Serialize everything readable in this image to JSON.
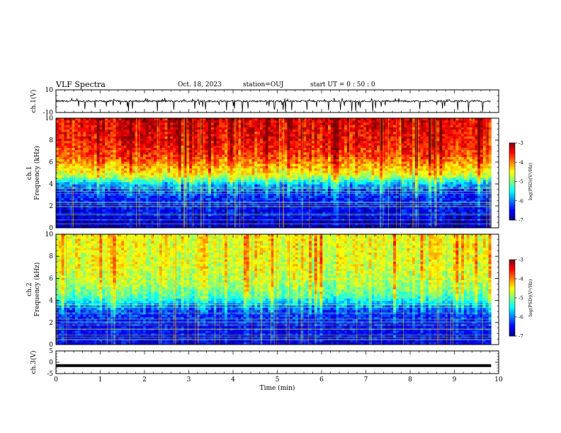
{
  "header": {
    "title": "VLF Spectra",
    "date": "Oct. 18, 2023",
    "station": "station=OUJ",
    "start": "start  UT  =   0  : 50 : 0"
  },
  "chart_data": [
    {
      "type": "line",
      "id": "ch1-waveform",
      "ylabel": "ch.1(V)",
      "ylim": [
        -10,
        10
      ],
      "yticks": [
        10,
        -10
      ],
      "xlim": [
        0,
        10
      ],
      "series": [
        {
          "values_description_free": true,
          "baseline": 0,
          "spike_min": -10,
          "spike_max": 3
        }
      ],
      "color": "#000000"
    },
    {
      "type": "heatmap",
      "id": "ch1-spectrogram",
      "ylabel": [
        "ch.1",
        "Frequency (kHz)"
      ],
      "ylim": [
        0,
        10
      ],
      "yticks": [
        0,
        2,
        4,
        6,
        8,
        10
      ],
      "xlim": [
        0,
        10
      ],
      "data_end_min": 9.83,
      "band_profile_log_psd": [
        {
          "f": 0.0,
          "v": -6.8
        },
        {
          "f": 1.0,
          "v": -6.6
        },
        {
          "f": 2.0,
          "v": -6.5
        },
        {
          "f": 3.0,
          "v": -6.3
        },
        {
          "f": 3.8,
          "v": -6.0
        },
        {
          "f": 4.3,
          "v": -5.3
        },
        {
          "f": 4.8,
          "v": -4.6
        },
        {
          "f": 5.5,
          "v": -4.3
        },
        {
          "f": 6.5,
          "v": -3.8
        },
        {
          "f": 8.0,
          "v": -3.5
        },
        {
          "f": 10.0,
          "v": -3.4
        }
      ],
      "colorbar": {
        "label": "log(PSD)(V²/Hz)",
        "min": -7,
        "max": -3,
        "ticks": [
          -3,
          -4,
          -5,
          -6,
          -7
        ]
      }
    },
    {
      "type": "heatmap",
      "id": "ch2-spectrogram",
      "ylabel": [
        "ch.2",
        "Frequency (kHz)"
      ],
      "ylim": [
        0,
        10
      ],
      "yticks": [
        0,
        2,
        4,
        6,
        8,
        10
      ],
      "xlim": [
        0,
        10
      ],
      "data_end_min": 9.83,
      "band_profile_log_psd": [
        {
          "f": 0.0,
          "v": -6.6
        },
        {
          "f": 1.0,
          "v": -6.5
        },
        {
          "f": 2.0,
          "v": -6.4
        },
        {
          "f": 3.0,
          "v": -6.2
        },
        {
          "f": 3.6,
          "v": -5.8
        },
        {
          "f": 4.3,
          "v": -5.2
        },
        {
          "f": 5.5,
          "v": -4.8
        },
        {
          "f": 7.0,
          "v": -4.6
        },
        {
          "f": 10.0,
          "v": -4.5
        }
      ],
      "colorbar": {
        "label": "log(PSD)(V²/Hz)",
        "min": -7,
        "max": -3,
        "ticks": [
          -3,
          -4,
          -5,
          -6,
          -7
        ]
      }
    },
    {
      "type": "line",
      "id": "ch3-waveform",
      "ylabel": "ch.3(V)",
      "ylim": [
        -5,
        5
      ],
      "yticks": [
        5,
        0,
        -5
      ],
      "xlim": [
        0,
        10
      ],
      "series": [
        {
          "constant": -1.5
        }
      ],
      "color": "#000000"
    }
  ],
  "xaxis": {
    "label": "Time  (min)",
    "ticks": [
      0,
      1,
      2,
      3,
      4,
      5,
      6,
      7,
      8,
      9,
      10
    ]
  },
  "colormap": [
    "#00007f",
    "#0000ff",
    "#007fff",
    "#00ffff",
    "#7fff7f",
    "#ffff00",
    "#ff7f00",
    "#ff0000",
    "#7f0000"
  ]
}
